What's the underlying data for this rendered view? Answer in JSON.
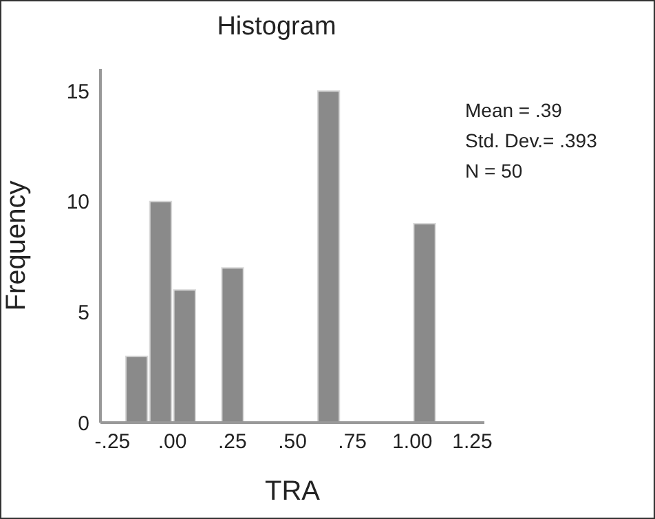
{
  "chart_data": {
    "type": "histogram",
    "title": "Histogram",
    "xlabel": "TRA",
    "ylabel": "Frequency",
    "bins": [
      -0.2,
      -0.1,
      0,
      0.1,
      0.2,
      0.3,
      0.4,
      0.5,
      0.6,
      0.7,
      0.8,
      0.9,
      1.0,
      1.1
    ],
    "values": [
      3,
      10,
      6,
      0,
      7,
      0,
      0,
      0,
      15,
      0,
      0,
      0,
      9
    ],
    "color": "#8a8a8a",
    "xlim": [
      -0.3,
      1.3
    ],
    "xticks": [
      {
        "value": -0.25,
        "label": "-.25"
      },
      {
        "value": 0,
        "label": ".00"
      },
      {
        "value": 0.25,
        "label": ".25"
      },
      {
        "value": 0.5,
        "label": ".50"
      },
      {
        "value": 0.75,
        "label": ".75"
      },
      {
        "value": 1.0,
        "label": "1.00"
      },
      {
        "value": 1.25,
        "label": "1.25"
      }
    ],
    "ylim": [
      0,
      16
    ],
    "yticks": [
      0,
      5,
      10,
      15
    ],
    "annotations": [
      "Mean = .39",
      "Std. Dev.= .393",
      "N = 50"
    ]
  }
}
